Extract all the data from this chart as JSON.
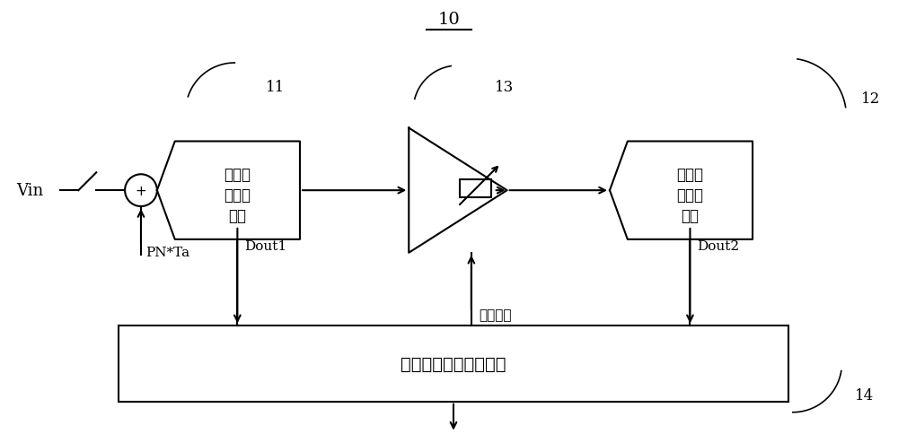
{
  "bg_color": "#ffffff",
  "line_color": "#000000",
  "title": "10",
  "label_11": "11",
  "label_12": "12",
  "label_13": "13",
  "label_14": "14",
  "vin_label": "Vin",
  "pn_label": "PN*Ta",
  "dout1_label": "Dout1",
  "dout2_label": "Dout2",
  "gain_label": "控制增益",
  "box1_line1": "第一级",
  "box1_line2": "模数转",
  "box1_line3": "换器",
  "box2_line1": "第二级",
  "box2_line2": "模数转",
  "box2_line3": "换器",
  "bottom_box_text": "数字校准控制逻辑电路"
}
